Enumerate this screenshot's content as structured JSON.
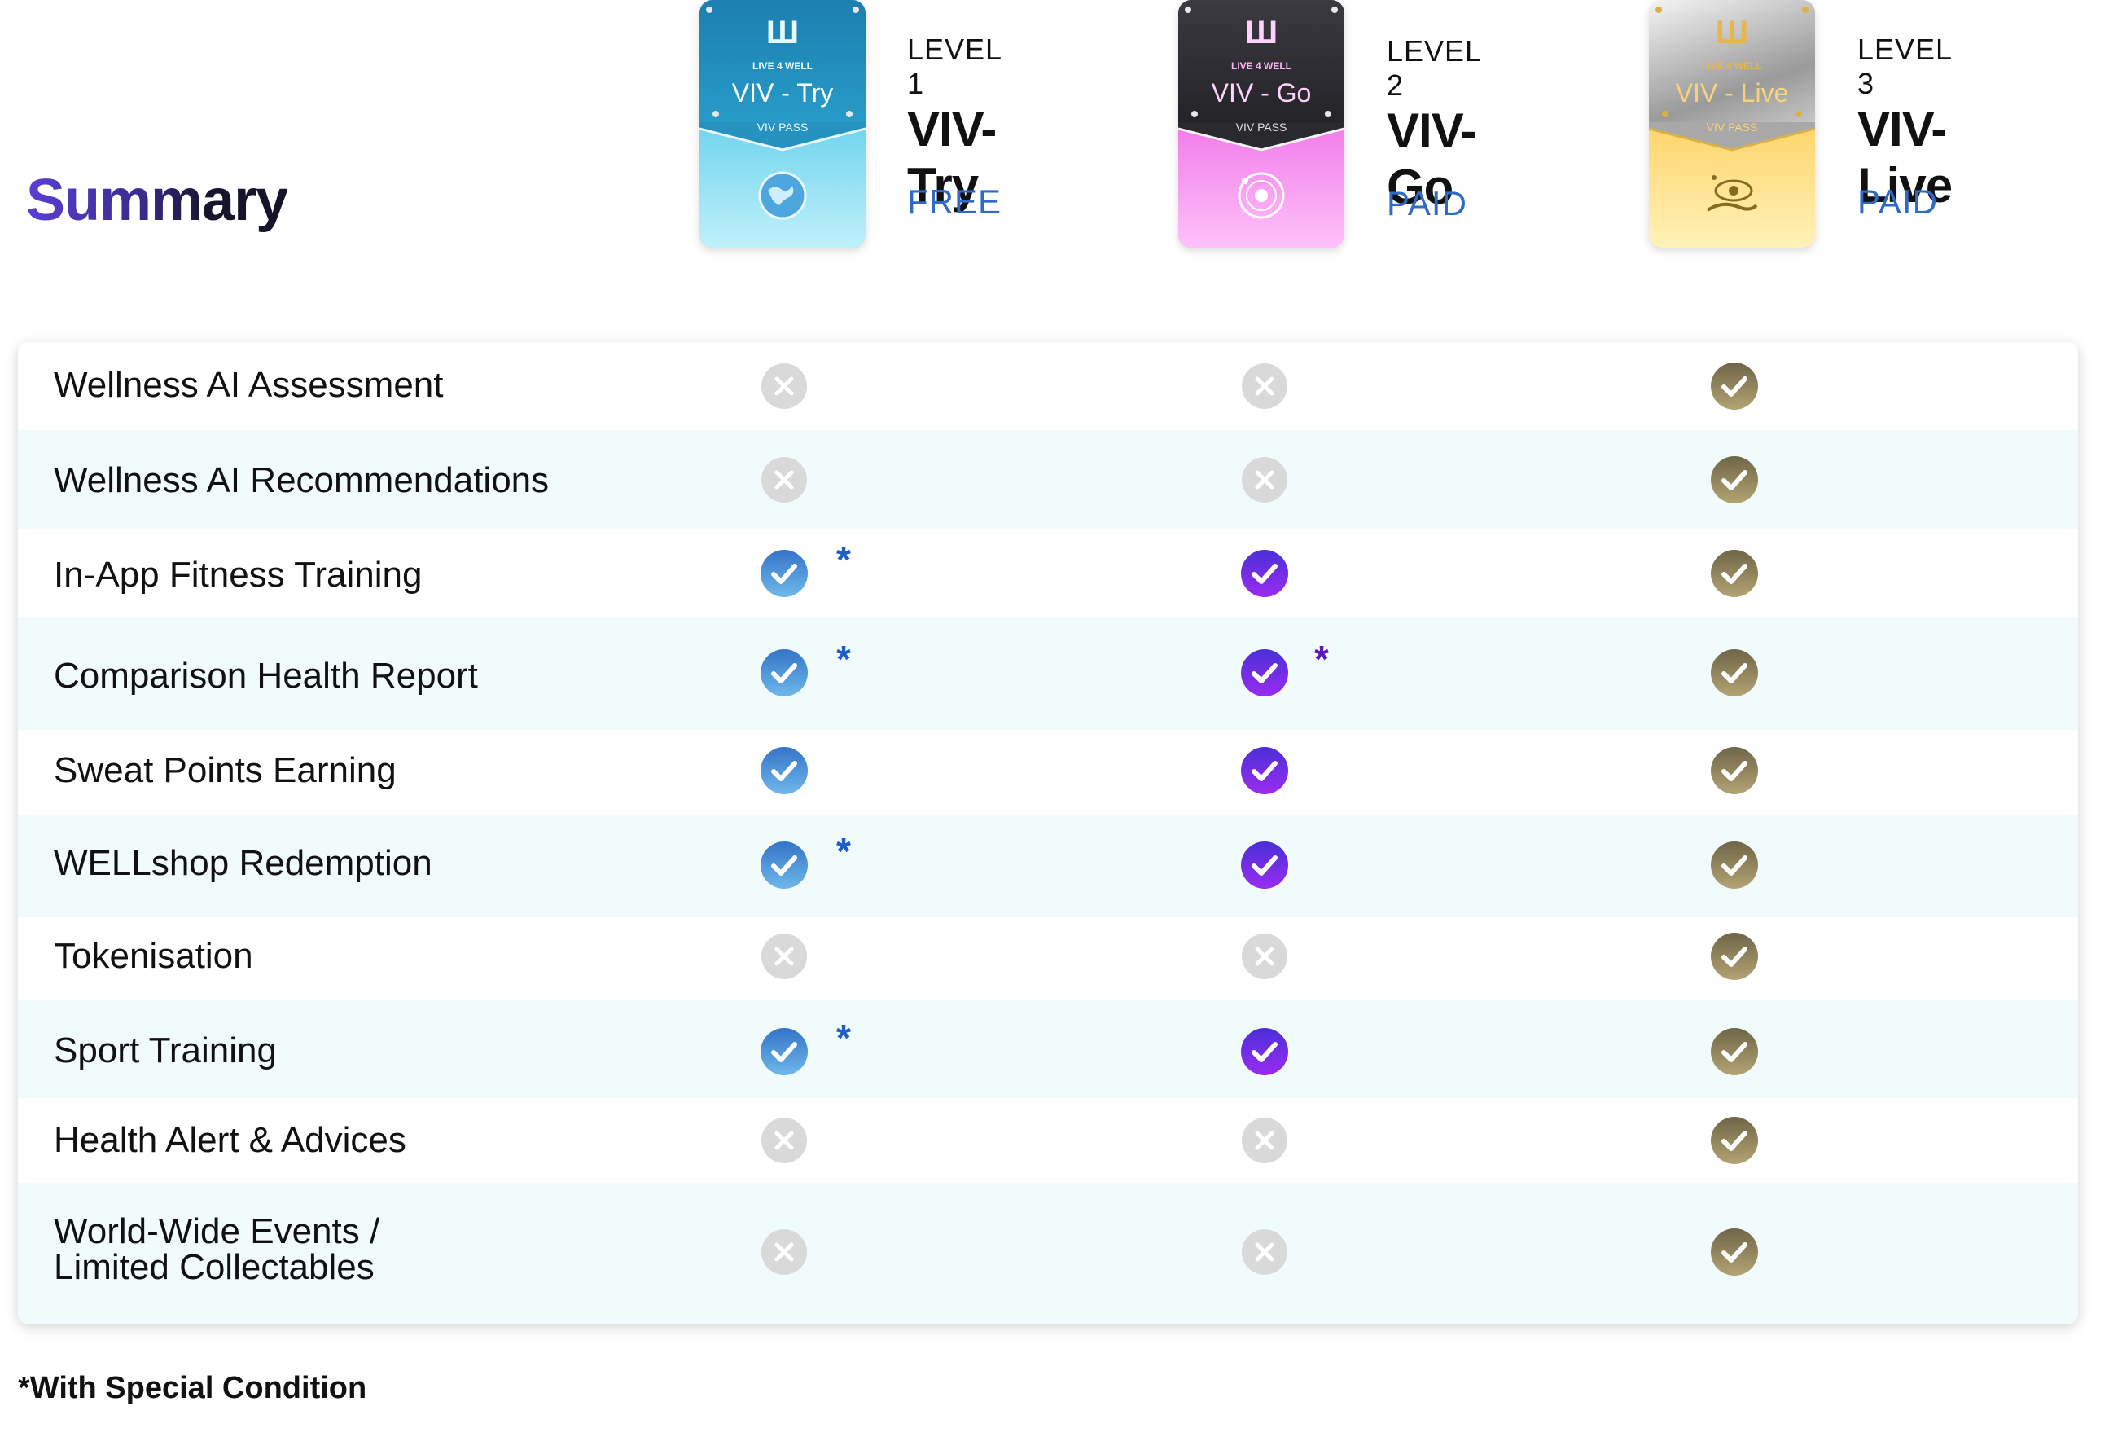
{
  "page": {
    "title": "Summary",
    "footnote": "*With Special Condition"
  },
  "plans": [
    {
      "level": "LEVEL 1",
      "name": "VIV-Try",
      "price": "FREE",
      "pass": {
        "brand": "LIVE 4 WELL",
        "name": "VIV - Try",
        "label": "VIV PASS",
        "emblem": "globe-icon",
        "top_color": "#1f86b8",
        "bottom_color": "#8ee3f6"
      }
    },
    {
      "level": "LEVEL 2",
      "name": "VIV-Go",
      "price": "PAID",
      "pass": {
        "brand": "LIVE 4 WELL",
        "name": "VIV - Go",
        "label": "VIV PASS",
        "emblem": "planet-icon",
        "top_color": "#2a2a2e",
        "bottom_color": "#f58ff2"
      }
    },
    {
      "level": "LEVEL 3",
      "name": "VIV-Live",
      "price": "PAID",
      "pass": {
        "brand": "LIVE 4 WELL",
        "name": "VIV - Live",
        "label": "VIV PASS",
        "emblem": "galaxy-hand-icon",
        "top_color": "#bdbdbd",
        "bottom_color": "#ffd76a"
      }
    }
  ],
  "features": [
    {
      "label": "Wellness AI Assessment",
      "cells": [
        "no",
        "no",
        "yes"
      ]
    },
    {
      "label": "Wellness AI Recommendations",
      "cells": [
        "no",
        "no",
        "yes"
      ]
    },
    {
      "label": "In-App Fitness Training",
      "cells": [
        "yes*",
        "yes",
        "yes"
      ]
    },
    {
      "label": "Comparison Health Report",
      "cells": [
        "yes*",
        "yes*",
        "yes"
      ]
    },
    {
      "label": "Sweat Points Earning",
      "cells": [
        "yes",
        "yes",
        "yes"
      ]
    },
    {
      "label": "WELLshop Redemption",
      "cells": [
        "yes*",
        "yes",
        "yes"
      ]
    },
    {
      "label": "Tokenisation",
      "cells": [
        "no",
        "no",
        "yes"
      ]
    },
    {
      "label": "Sport Training",
      "cells": [
        "yes*",
        "yes",
        "yes"
      ]
    },
    {
      "label": "Health Alert & Advices",
      "cells": [
        "no",
        "no",
        "yes"
      ]
    },
    {
      "label": "World-Wide Events / Limited Collectables",
      "label_lines": [
        "World-Wide Events /",
        "Limited Collectables"
      ],
      "cells": [
        "no",
        "no",
        "yes"
      ]
    }
  ],
  "colors": {
    "unavailable": "#d9d9d9",
    "plan1_check": "#3f8ed6",
    "plan2_check": "#7a2fe8",
    "plan3_check": "#8a7b55",
    "plan1_star": "#1f5fc4",
    "plan2_star": "#5a16b8",
    "price": "#2f6bc4"
  }
}
